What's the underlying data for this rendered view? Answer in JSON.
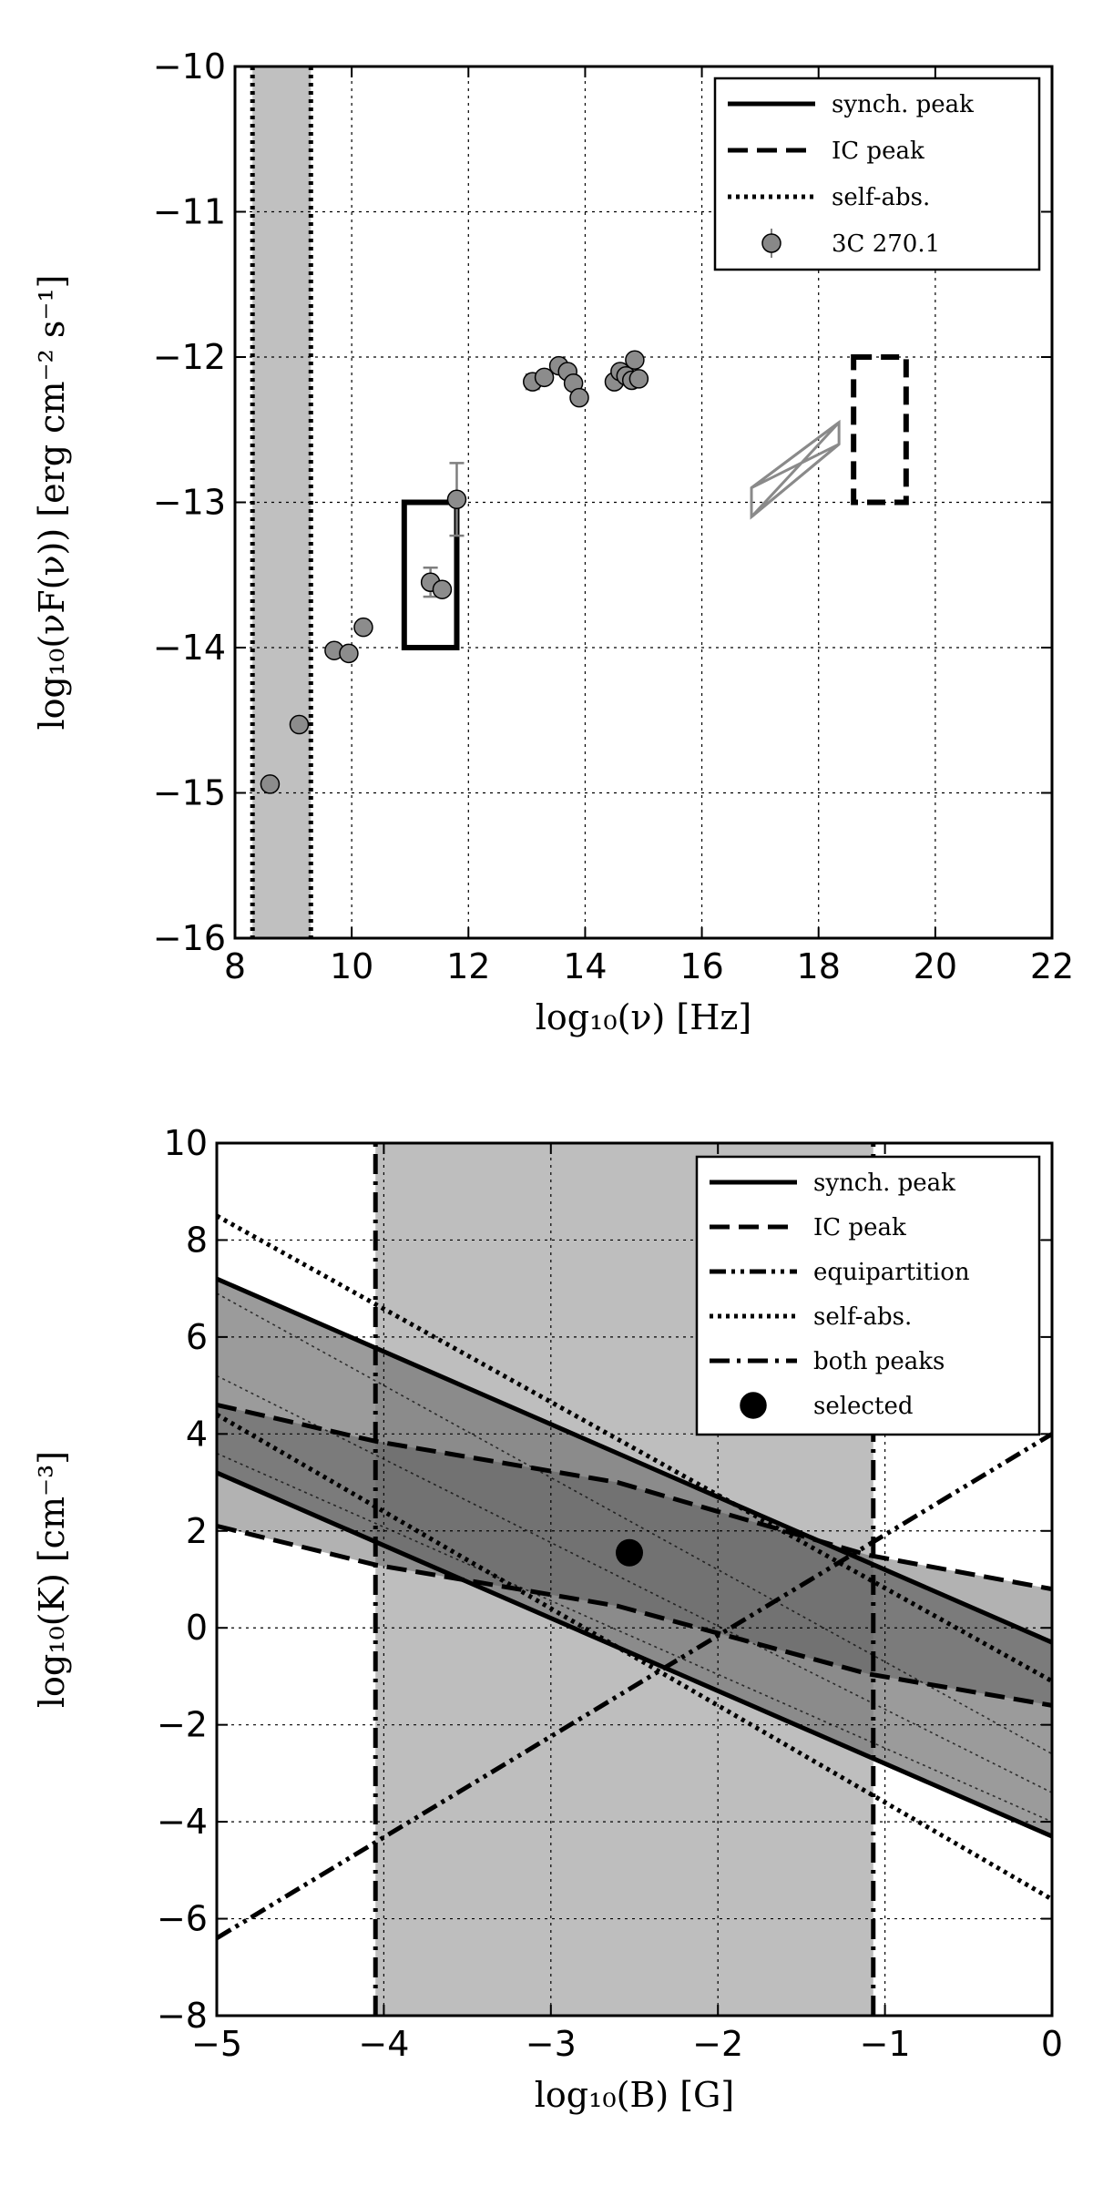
{
  "chart_data": [
    {
      "type": "scatter",
      "xlabel": "log₁₀(ν) [Hz]",
      "ylabel": "log₁₀(νF(ν)) [erg cm⁻² s⁻¹]",
      "xlim": [
        8,
        22
      ],
      "ylim": [
        -16,
        -10
      ],
      "xticks": [
        8,
        10,
        12,
        14,
        16,
        18,
        20,
        22
      ],
      "yticks": [
        -16,
        -15,
        -14,
        -13,
        -12,
        -11,
        -10
      ],
      "xtick_labels": [
        "8",
        "10",
        "12",
        "14",
        "16",
        "18",
        "20",
        "22"
      ],
      "ytick_labels": [
        "−16",
        "−15",
        "−14",
        "−13",
        "−12",
        "−11",
        "−10"
      ],
      "grid": true,
      "legend_position": "top-right",
      "self_absorption_band": [
        8.3,
        9.3
      ],
      "synch_peak_box": {
        "x": [
          10.9,
          11.8
        ],
        "y": [
          -14,
          -13
        ]
      },
      "ic_peak_box": {
        "x": [
          18.6,
          19.5
        ],
        "y": [
          -13,
          -12
        ]
      },
      "xray_bowtie": [
        [
          16.85,
          -12.9
        ],
        [
          18.35,
          -12.45
        ],
        [
          18.35,
          -12.6
        ],
        [
          16.85,
          -13.1
        ]
      ],
      "series": [
        {
          "name": "3C 270.1",
          "marker": "circle",
          "points": [
            {
              "x": 8.6,
              "y": -14.94
            },
            {
              "x": 9.1,
              "y": -14.53
            },
            {
              "x": 9.7,
              "y": -14.02
            },
            {
              "x": 9.95,
              "y": -14.04
            },
            {
              "x": 10.2,
              "y": -13.86
            },
            {
              "x": 11.35,
              "y": -13.55,
              "yerr": 0.1
            },
            {
              "x": 11.55,
              "y": -13.6
            },
            {
              "x": 11.8,
              "y": -12.98,
              "yerr": 0.25
            },
            {
              "x": 13.1,
              "y": -12.17,
              "yerr": 0.05
            },
            {
              "x": 13.3,
              "y": -12.14
            },
            {
              "x": 13.55,
              "y": -12.06
            },
            {
              "x": 13.7,
              "y": -12.1
            },
            {
              "x": 13.8,
              "y": -12.18
            },
            {
              "x": 13.9,
              "y": -12.28
            },
            {
              "x": 14.5,
              "y": -12.17
            },
            {
              "x": 14.6,
              "y": -12.1
            },
            {
              "x": 14.7,
              "y": -12.13
            },
            {
              "x": 14.8,
              "y": -12.16
            },
            {
              "x": 14.85,
              "y": -12.02
            },
            {
              "x": 14.92,
              "y": -12.15
            }
          ]
        }
      ],
      "legend": [
        {
          "label": "synch. peak",
          "style": "solid"
        },
        {
          "label": "IC peak",
          "style": "dashed"
        },
        {
          "label": "self-abs.",
          "style": "dotted"
        },
        {
          "label": "3C 270.1",
          "style": "marker"
        }
      ]
    },
    {
      "type": "line",
      "xlabel": "log₁₀(B) [G]",
      "ylabel": "log₁₀(K) [cm⁻³]",
      "xlim": [
        -5,
        0
      ],
      "ylim": [
        -8,
        10
      ],
      "xticks": [
        -5,
        -4,
        -3,
        -2,
        -1,
        0
      ],
      "yticks": [
        -8,
        -6,
        -4,
        -2,
        0,
        2,
        4,
        6,
        8,
        10
      ],
      "xtick_labels": [
        "−5",
        "−4",
        "−3",
        "−2",
        "−1",
        "0"
      ],
      "ytick_labels": [
        "−8",
        "−6",
        "−4",
        "−2",
        "0",
        "2",
        "4",
        "6",
        "8",
        "10"
      ],
      "grid": true,
      "legend_position": "top-right",
      "both_peaks_band": [
        -4.05,
        -1.07
      ],
      "series": [
        {
          "name": "synch. peak",
          "style": "solid",
          "points": [
            [
              -5,
              7.2
            ],
            [
              0,
              -0.3
            ]
          ]
        },
        {
          "name": "synch. peak",
          "style": "solid",
          "points": [
            [
              -5,
              3.2
            ],
            [
              0,
              -4.3
            ]
          ]
        },
        {
          "name": "IC peak",
          "style": "dashed",
          "points": [
            [
              -5,
              4.6
            ],
            [
              -4.05,
              3.85
            ],
            [
              -2.6,
              3.0
            ],
            [
              -1.1,
              1.5
            ],
            [
              0,
              0.8
            ]
          ]
        },
        {
          "name": "IC peak",
          "style": "dashed",
          "points": [
            [
              -5,
              2.1
            ],
            [
              -4.05,
              1.3
            ],
            [
              -2.6,
              0.45
            ],
            [
              -1.1,
              -0.95
            ],
            [
              0,
              -1.6
            ]
          ]
        },
        {
          "name": "equipartition",
          "style": "dashdotdot",
          "points": [
            [
              -5,
              -6.4
            ],
            [
              0,
              4.0
            ]
          ]
        },
        {
          "name": "self-abs.",
          "style": "dotted",
          "points": [
            [
              -5,
              8.5
            ],
            [
              0,
              -1.1
            ]
          ]
        },
        {
          "name": "self-abs.",
          "style": "dotted",
          "points": [
            [
              -5,
              4.4
            ],
            [
              0,
              -5.6
            ]
          ]
        },
        {
          "name": "both peaks",
          "style": "dashdot",
          "points": [
            [
              -4.05,
              -8
            ],
            [
              -4.05,
              10
            ]
          ]
        },
        {
          "name": "both peaks",
          "style": "dashdot",
          "points": [
            [
              -1.07,
              -8
            ],
            [
              -1.07,
              10
            ]
          ]
        }
      ],
      "selected": {
        "name": "selected",
        "x": -2.53,
        "y": 1.55
      },
      "legend": [
        {
          "label": "synch. peak",
          "style": "solid"
        },
        {
          "label": "IC peak",
          "style": "dashed"
        },
        {
          "label": "equipartition",
          "style": "dashdotdot"
        },
        {
          "label": "self-abs.",
          "style": "dotted"
        },
        {
          "label": "both peaks",
          "style": "dashdot"
        },
        {
          "label": "selected",
          "style": "marker"
        }
      ]
    }
  ]
}
